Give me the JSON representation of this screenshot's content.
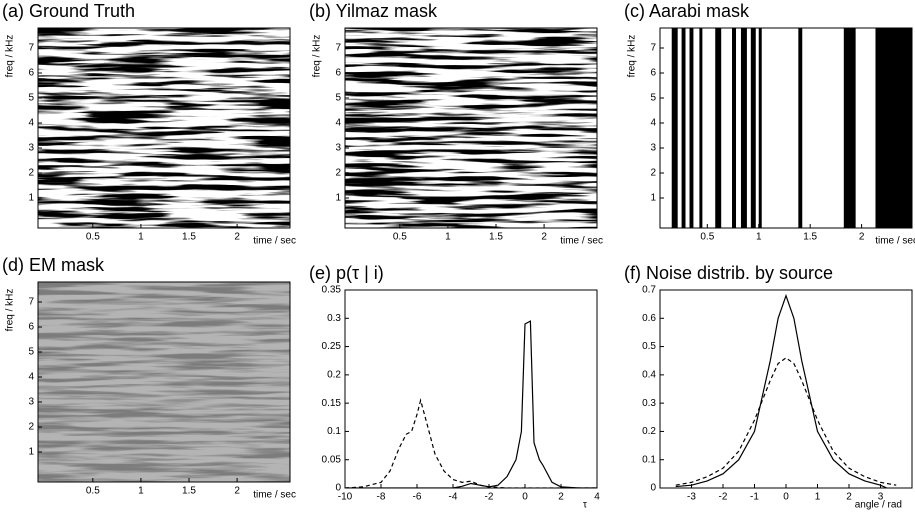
{
  "chart_data": [
    {
      "type": "spectrogram",
      "title": "(a)  Ground Truth",
      "xlabel": "time / sec",
      "ylabel": "freq / kHz",
      "xlim": [
        -0.07,
        2.55
      ],
      "ylim": [
        -0.2,
        7.8
      ],
      "xticks": [
        0.5,
        1,
        1.5,
        2
      ],
      "yticks": [
        1,
        2,
        3,
        4,
        5,
        6,
        7
      ],
      "color": "#000000"
    },
    {
      "type": "spectrogram",
      "title": "(b)  Yilmaz mask",
      "xlabel": "time / sec",
      "ylabel": "freq / kHz",
      "xlim": [
        -0.07,
        2.55
      ],
      "ylim": [
        -0.2,
        7.8
      ],
      "xticks": [
        0.5,
        1,
        1.5,
        2
      ],
      "yticks": [
        1,
        2,
        3,
        4,
        5,
        6,
        7
      ],
      "color": "#000000"
    },
    {
      "type": "mask",
      "title": "(c)  Aarabi mask",
      "xlabel": "time / sec",
      "ylabel": "freq / kHz",
      "xlim": [
        0.04,
        2.49
      ],
      "ylim": [
        -0.2,
        7.8
      ],
      "xticks": [
        0.5,
        1,
        1.5,
        2
      ],
      "yticks": [
        1,
        2,
        3,
        4,
        5,
        6,
        7
      ],
      "color": "#000000",
      "bands": [
        [
          0.154,
          0.212
        ],
        [
          0.25,
          0.288
        ],
        [
          0.327,
          0.365
        ],
        [
          0.423,
          0.452
        ],
        [
          0.577,
          0.635
        ],
        [
          0.74,
          0.779
        ],
        [
          0.827,
          0.885
        ],
        [
          0.923,
          0.971
        ],
        [
          1.0,
          1.029
        ],
        [
          1.385,
          1.423
        ],
        [
          1.827,
          1.942
        ],
        [
          2.135,
          2.49
        ]
      ]
    },
    {
      "type": "spectrogram",
      "title": "(d)  EM mask",
      "xlabel": "time / sec",
      "ylabel": "freq / kHz",
      "xlim": [
        -0.07,
        2.55
      ],
      "ylim": [
        -0.2,
        7.8
      ],
      "xticks": [
        0.5,
        1,
        1.5,
        2
      ],
      "yticks": [
        1,
        2,
        3,
        4,
        5,
        6,
        7
      ],
      "color": "#3a3a3a"
    },
    {
      "type": "line",
      "title": "(e)  p(τ | i)",
      "xlabel": "τ",
      "xlim": [
        -10,
        4
      ],
      "ylim": [
        0,
        0.35
      ],
      "xticks": [
        -10,
        -8,
        -6,
        -4,
        -2,
        0,
        2,
        4
      ],
      "yticks": [
        0,
        0.05,
        0.1,
        0.15,
        0.2,
        0.25,
        0.3,
        0.35
      ],
      "series": [
        {
          "color": "#000000",
          "dashed": false,
          "x": [
            -10,
            -4,
            -3.5,
            -3,
            -2.5,
            -2,
            -1.5,
            -1,
            -0.5,
            -0.2,
            0,
            0.3,
            0.5,
            0.8,
            1,
            1.5,
            2,
            3,
            4
          ],
          "values": [
            0,
            0,
            0.003,
            0.008,
            0.005,
            0.002,
            0.005,
            0.02,
            0.05,
            0.1,
            0.29,
            0.295,
            0.08,
            0.05,
            0.04,
            0.01,
            0.002,
            0,
            0
          ]
        },
        {
          "color": "#000000",
          "dashed": true,
          "x": [
            -10,
            -9,
            -8,
            -7.5,
            -7,
            -6.6,
            -6.3,
            -6,
            -5.8,
            -5.5,
            -5,
            -4.5,
            -4,
            -3.5,
            -3,
            -2.5,
            -2,
            -1,
            0,
            4
          ],
          "values": [
            0,
            0.002,
            0.01,
            0.03,
            0.07,
            0.095,
            0.1,
            0.13,
            0.155,
            0.12,
            0.06,
            0.03,
            0.015,
            0.01,
            0.012,
            0.005,
            0.002,
            0,
            0,
            0
          ]
        }
      ]
    },
    {
      "type": "line",
      "title": "(f)  Noise distrib. by source",
      "xlabel": "angle / rad",
      "xlim": [
        -4,
        4
      ],
      "ylim": [
        0,
        0.7
      ],
      "xticks": [
        -3,
        -2,
        -1,
        0,
        1,
        2,
        3
      ],
      "yticks": [
        0,
        0.1,
        0.2,
        0.3,
        0.4,
        0.5,
        0.6,
        0.7
      ],
      "series": [
        {
          "color": "#000000",
          "dashed": false,
          "x": [
            -3.5,
            -3,
            -2.5,
            -2,
            -1.5,
            -1,
            -0.5,
            -0.25,
            0,
            0.25,
            0.5,
            1,
            1.5,
            2,
            2.5,
            3,
            3.2
          ],
          "values": [
            0.005,
            0.01,
            0.025,
            0.05,
            0.1,
            0.2,
            0.45,
            0.6,
            0.68,
            0.6,
            0.45,
            0.2,
            0.1,
            0.05,
            0.025,
            0.01,
            0
          ]
        },
        {
          "color": "#000000",
          "dashed": true,
          "x": [
            -3.5,
            -3,
            -2.5,
            -2,
            -1.5,
            -1,
            -0.5,
            -0.25,
            0,
            0.25,
            0.5,
            1,
            1.5,
            2,
            2.5,
            3,
            3.5
          ],
          "values": [
            0.01,
            0.02,
            0.04,
            0.07,
            0.13,
            0.24,
            0.38,
            0.44,
            0.46,
            0.44,
            0.38,
            0.24,
            0.13,
            0.07,
            0.04,
            0.02,
            0.01
          ]
        }
      ]
    }
  ]
}
